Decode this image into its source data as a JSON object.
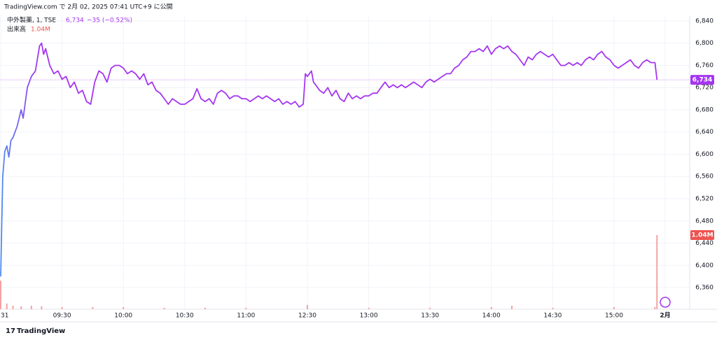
{
  "header": {
    "published": "TradingView.com で 2月 02, 2025 07:41 UTC+9 に公開",
    "logo": "TradingView"
  },
  "chart_data": {
    "type": "line",
    "symbol": "中外製薬, 1, TSE",
    "last_price": {
      "value": 6734,
      "label": "6,734"
    },
    "change": "−35 (−0.52%)",
    "volume_title": "出来高",
    "volume_label": "1.04M",
    "color": "#a535f0",
    "start_color": "#4f8cf0",
    "grid": true,
    "x": [
      0,
      1,
      2,
      3,
      4,
      5,
      6,
      8,
      10,
      11,
      13,
      15,
      17,
      19,
      20,
      21,
      22,
      24,
      26,
      28,
      30,
      32,
      34,
      36,
      38,
      40,
      42,
      44,
      46,
      48,
      50,
      52,
      54,
      56,
      58,
      60,
      62,
      64,
      66,
      68,
      70,
      72,
      74,
      76,
      78,
      80,
      82,
      84,
      86,
      88,
      90,
      92,
      94,
      96,
      98,
      100,
      102,
      104,
      106,
      108,
      110,
      112,
      114,
      116,
      118,
      120,
      122,
      124,
      126,
      128,
      130,
      132,
      134,
      136,
      138,
      140,
      142,
      144,
      146,
      148,
      149,
      150,
      152,
      153,
      154,
      156,
      158,
      160,
      162,
      164,
      166,
      168,
      170,
      172,
      174,
      176,
      178,
      180,
      182,
      184,
      186,
      188,
      190,
      192,
      194,
      196,
      198,
      200,
      202,
      204,
      206,
      208,
      210,
      212,
      214,
      216,
      218,
      220,
      222,
      224,
      226,
      228,
      230,
      232,
      234,
      236,
      238,
      240,
      242,
      244,
      246,
      248,
      250,
      252,
      254,
      256,
      258,
      260,
      262,
      264,
      266,
      268,
      270,
      272,
      274,
      276,
      278,
      280,
      282,
      284,
      286,
      288,
      290,
      292,
      294,
      296,
      298,
      300,
      302,
      304,
      306,
      308,
      310,
      312,
      314,
      316,
      318,
      320,
      321
    ],
    "series": [
      {
        "values": [
          6380,
          6560,
          6605,
          6615,
          6595,
          6625,
          6630,
          6650,
          6680,
          6665,
          6720,
          6740,
          6750,
          6795,
          6800,
          6780,
          6790,
          6760,
          6745,
          6750,
          6735,
          6740,
          6720,
          6730,
          6710,
          6715,
          6695,
          6690,
          6730,
          6750,
          6745,
          6730,
          6755,
          6760,
          6760,
          6755,
          6745,
          6750,
          6745,
          6735,
          6745,
          6725,
          6730,
          6715,
          6710,
          6700,
          6690,
          6700,
          6695,
          6690,
          6690,
          6695,
          6700,
          6718,
          6700,
          6695,
          6700,
          6690,
          6710,
          6715,
          6710,
          6700,
          6705,
          6705,
          6700,
          6700,
          6695,
          6700,
          6705,
          6700,
          6705,
          6700,
          6695,
          6700,
          6690,
          6695,
          6690,
          6695,
          6685,
          6690,
          6745,
          6740,
          6750,
          6730,
          6725,
          6715,
          6710,
          6720,
          6705,
          6715,
          6700,
          6695,
          6710,
          6700,
          6705,
          6700,
          6705,
          6705,
          6710,
          6710,
          6720,
          6730,
          6720,
          6725,
          6720,
          6725,
          6720,
          6725,
          6730,
          6725,
          6720,
          6730,
          6735,
          6730,
          6735,
          6740,
          6745,
          6745,
          6755,
          6760,
          6770,
          6775,
          6785,
          6785,
          6790,
          6785,
          6795,
          6780,
          6790,
          6795,
          6790,
          6795,
          6785,
          6780,
          6770,
          6760,
          6775,
          6770,
          6780,
          6785,
          6780,
          6775,
          6780,
          6770,
          6760,
          6760,
          6765,
          6760,
          6765,
          6760,
          6770,
          6775,
          6770,
          6780,
          6785,
          6775,
          6770,
          6760,
          6755,
          6760,
          6765,
          6770,
          6760,
          6755,
          6765,
          6770,
          6765,
          6765,
          6734
        ]
      }
    ],
    "volume": {
      "color": "#f4a3a3",
      "x": [
        0,
        3,
        6,
        10,
        15,
        20,
        30,
        45,
        60,
        80,
        100,
        120,
        150,
        180,
        210,
        240,
        250,
        270,
        300,
        320,
        321
      ],
      "values": [
        0.4,
        0.08,
        0.05,
        0.04,
        0.05,
        0.04,
        0.03,
        0.03,
        0.03,
        0.02,
        0.02,
        0.02,
        0.06,
        0.02,
        0.02,
        0.03,
        0.05,
        0.02,
        0.03,
        0.03,
        1.04
      ]
    },
    "xlim": [
      0,
      337
    ],
    "ylim": [
      6321,
      6850
    ],
    "xticks": [
      {
        "value": 0,
        "label": "31"
      },
      {
        "value": 30,
        "label": "09:30"
      },
      {
        "value": 60,
        "label": "10:00"
      },
      {
        "value": 90,
        "label": "10:30"
      },
      {
        "value": 120,
        "label": "11:00"
      },
      {
        "value": 150,
        "label": "12:30"
      },
      {
        "value": 180,
        "label": "13:00"
      },
      {
        "value": 210,
        "label": "13:30"
      },
      {
        "value": 240,
        "label": "14:00"
      },
      {
        "value": 270,
        "label": "14:30"
      },
      {
        "value": 300,
        "label": "15:00"
      },
      {
        "value": 325,
        "label": "2月"
      }
    ],
    "yticks": [
      {
        "value": 6360,
        "label": "6,360"
      },
      {
        "value": 6400,
        "label": "6,400"
      },
      {
        "value": 6440,
        "label": "6,440"
      },
      {
        "value": 6480,
        "label": "6,480"
      },
      {
        "value": 6520,
        "label": "6,520"
      },
      {
        "value": 6560,
        "label": "6,560"
      },
      {
        "value": 6600,
        "label": "6,600"
      },
      {
        "value": 6640,
        "label": "6,640"
      },
      {
        "value": 6680,
        "label": "6,680"
      },
      {
        "value": 6720,
        "label": "6,720"
      },
      {
        "value": 6760,
        "label": "6,760"
      },
      {
        "value": 6800,
        "label": "6,800"
      },
      {
        "value": 6840,
        "label": "6,840"
      }
    ]
  }
}
